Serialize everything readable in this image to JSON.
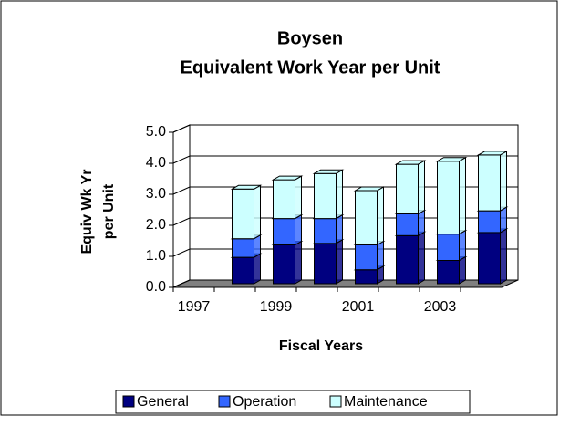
{
  "chart_data": {
    "type": "bar3d_stacked",
    "title": [
      "Boysen",
      "Equivalent Work Year per Unit"
    ],
    "y_label": [
      "Equiv Wk Yr",
      "per Unit"
    ],
    "x_label": "Fiscal Years",
    "categories": [
      "1997",
      null,
      "1999",
      null,
      "2001",
      null,
      "2003",
      null
    ],
    "series": [
      {
        "name": "General",
        "color": "#000080",
        "values": [
          null,
          0.85,
          1.25,
          1.3,
          0.45,
          1.55,
          0.75,
          1.65
        ]
      },
      {
        "name": "Operation",
        "color": "#3366ff",
        "values": [
          null,
          0.6,
          0.85,
          0.8,
          0.8,
          0.7,
          0.85,
          0.7
        ]
      },
      {
        "name": "Maintenance",
        "color": "#ccffff",
        "values": [
          null,
          1.6,
          1.25,
          1.45,
          1.75,
          1.6,
          2.35,
          1.8
        ]
      }
    ],
    "ylim": [
      0,
      5
    ],
    "yticks": [
      {
        "value": 0,
        "label": "0.0"
      },
      {
        "value": 1,
        "label": "1.0"
      },
      {
        "value": 2,
        "label": "2.0"
      },
      {
        "value": 3,
        "label": "3.0"
      },
      {
        "value": 4,
        "label": "4.0"
      },
      {
        "value": 5,
        "label": "5.0"
      }
    ],
    "grid": true
  }
}
